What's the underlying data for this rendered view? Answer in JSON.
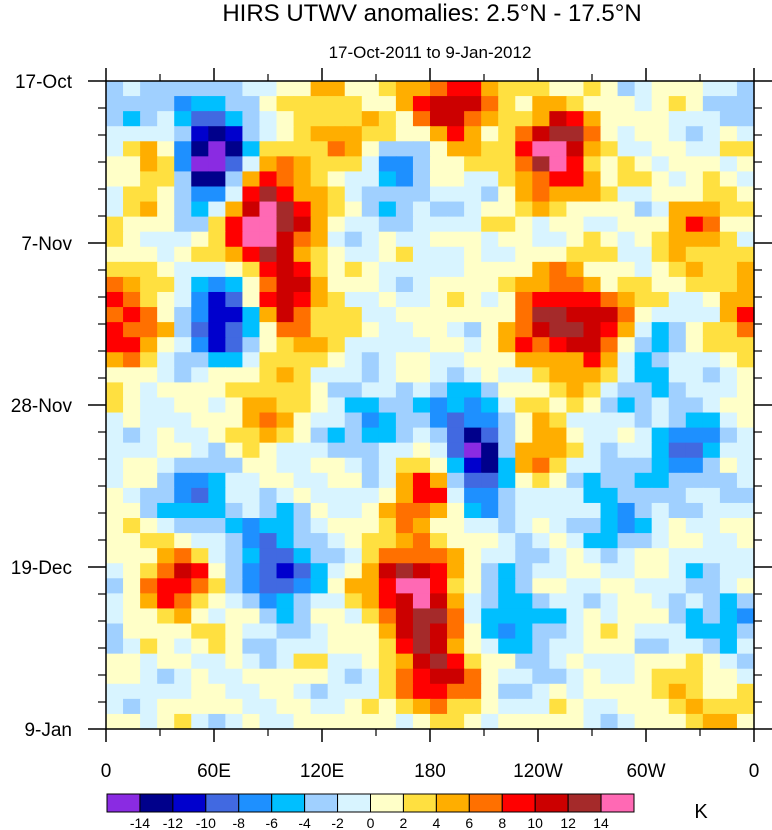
{
  "chart_data": {
    "type": "heatmap",
    "title": "HIRS UTWV anomalies: 2.5°N - 17.5°N",
    "subtitle": "17-Oct-2011 to 9-Jan-2012",
    "xlabel": "",
    "ylabel": "",
    "x_ticks": [
      "0",
      "60E",
      "120E",
      "180",
      "120W",
      "60W",
      "0"
    ],
    "y_ticks": [
      "17-Oct",
      "7-Nov",
      "28-Nov",
      "19-Dec",
      "9-Jan"
    ],
    "colorbar": {
      "unit": "K",
      "levels": [
        "-14",
        "-12",
        "-10",
        "-8",
        "-6",
        "-4",
        "-2",
        "0",
        "2",
        "4",
        "6",
        "8",
        "10",
        "12",
        "14"
      ],
      "colors": [
        "#8a2be2",
        "#00008b",
        "#0000cd",
        "#4169e1",
        "#1e90ff",
        "#00bfff",
        "#a0d0ff",
        "#d8f4ff",
        "#ffffc8",
        "#ffe040",
        "#ffae00",
        "#ff7000",
        "#ff0000",
        "#cc0000",
        "#a52a2a",
        "#ff69b4"
      ]
    },
    "grid_columns": 38,
    "grid_rows": 43,
    "anomaly_centers": [
      {
        "lon": 55,
        "day": 8,
        "value": -12
      },
      {
        "lon": 62,
        "day": 13,
        "value": -9
      },
      {
        "lon": 68,
        "day": 31,
        "value": -14
      },
      {
        "lon": 95,
        "day": 63,
        "value": -11
      },
      {
        "lon": 200,
        "day": 46,
        "value": -11
      },
      {
        "lon": 212,
        "day": 51,
        "value": -10
      },
      {
        "lon": 50,
        "day": 55,
        "value": -8
      },
      {
        "lon": 165,
        "day": 12,
        "value": -6
      },
      {
        "lon": 150,
        "day": 45,
        "value": -6
      },
      {
        "lon": 325,
        "day": 48,
        "value": -7
      },
      {
        "lon": 300,
        "day": 36,
        "value": -6
      },
      {
        "lon": 10,
        "day": 2,
        "value": -5
      },
      {
        "lon": 340,
        "day": 70,
        "value": -6
      },
      {
        "lon": 225,
        "day": 70,
        "value": -7
      },
      {
        "lon": 280,
        "day": 55,
        "value": -6
      },
      {
        "lon": 190,
        "day": 3,
        "value": 12
      },
      {
        "lon": 250,
        "day": 9,
        "value": 15
      },
      {
        "lon": 170,
        "day": 66,
        "value": 15
      },
      {
        "lon": 185,
        "day": 76,
        "value": 12
      },
      {
        "lon": 100,
        "day": 29,
        "value": 12
      },
      {
        "lon": 80,
        "day": 19,
        "value": 11
      },
      {
        "lon": 95,
        "day": 16,
        "value": 10
      },
      {
        "lon": 8,
        "day": 31,
        "value": 10
      },
      {
        "lon": 275,
        "day": 32,
        "value": 11
      },
      {
        "lon": 245,
        "day": 31,
        "value": 10
      },
      {
        "lon": 180,
        "day": 52,
        "value": 10
      },
      {
        "lon": 40,
        "day": 64,
        "value": 10
      },
      {
        "lon": 130,
        "day": 6,
        "value": 6
      },
      {
        "lon": 30,
        "day": 10,
        "value": 7
      },
      {
        "lon": 330,
        "day": 20,
        "value": 6
      },
      {
        "lon": 235,
        "day": 48,
        "value": 8
      },
      {
        "lon": 85,
        "day": 42,
        "value": 6
      },
      {
        "lon": 330,
        "day": 80,
        "value": 5
      }
    ]
  }
}
